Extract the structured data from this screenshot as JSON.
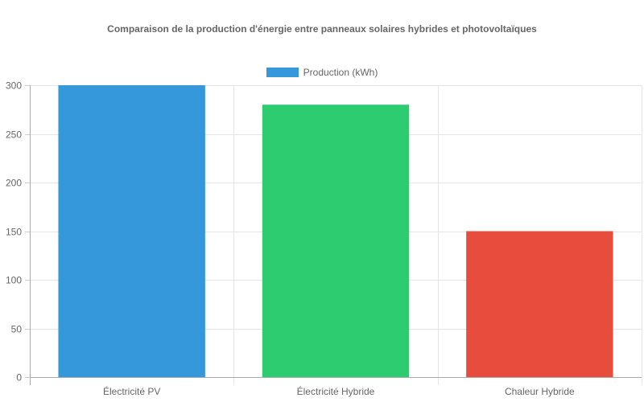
{
  "chart_data": {
    "type": "bar",
    "title": "Comparaison de la production d'énergie entre panneaux solaires hybrides et photovoltaïques",
    "categories": [
      "Électricité PV",
      "Électricité Hybride",
      "Chaleur Hybride"
    ],
    "series": [
      {
        "name": "Production (kWh)",
        "values": [
          300,
          280,
          150
        ],
        "colors": [
          "#3498db",
          "#2ecc71",
          "#e74c3c"
        ]
      }
    ],
    "xlabel": "",
    "ylabel": "",
    "ylim": [
      0,
      300
    ],
    "yticks": [
      0,
      50,
      100,
      150,
      200,
      250,
      300
    ],
    "grid": true,
    "legend_position": "top"
  },
  "legend": {
    "label": "Production (kWh)",
    "color": "#3498db"
  }
}
